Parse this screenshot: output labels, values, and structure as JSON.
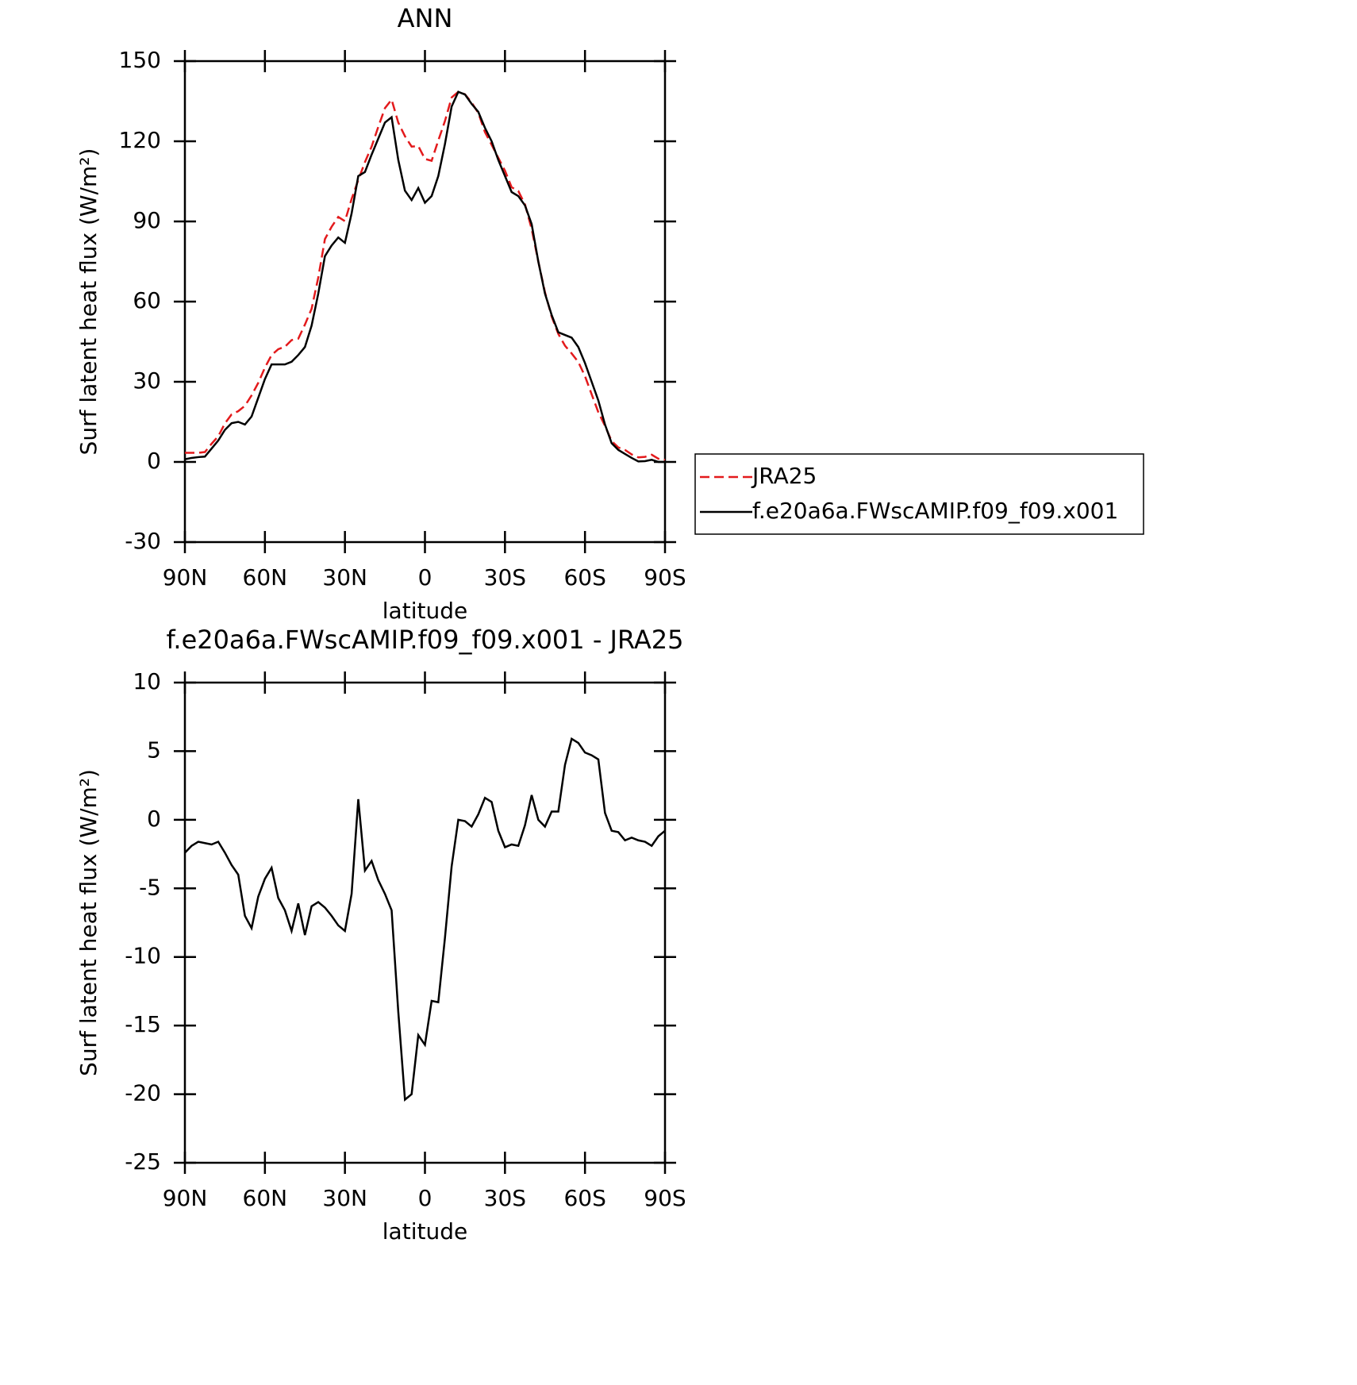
{
  "chart_data": [
    {
      "type": "line",
      "title": "ANN",
      "xlabel": "latitude",
      "ylabel": "Surf latent heat flux (W/m²)",
      "x": [
        90,
        87.5,
        85,
        82.5,
        80,
        77.5,
        75,
        72.5,
        70,
        67.5,
        65,
        62.5,
        60,
        57.5,
        55,
        52.5,
        50,
        47.5,
        45,
        42.5,
        40,
        37.5,
        35,
        32.5,
        30,
        27.5,
        25,
        22.5,
        20,
        17.5,
        15,
        12.5,
        10,
        7.5,
        5,
        2.5,
        0,
        -2.5,
        -5,
        -7.5,
        -10,
        -12.5,
        -15,
        -17.5,
        -20,
        -22.5,
        -25,
        -27.5,
        -30,
        -32.5,
        -35,
        -37.5,
        -40,
        -42.5,
        -45,
        -47.5,
        -50,
        -52.5,
        -55,
        -57.5,
        -60,
        -62.5,
        -65,
        -67.5,
        -70,
        -72.5,
        -75,
        -77.5,
        -80,
        -82.5,
        -85,
        -87.5,
        -90
      ],
      "series": [
        {
          "name": "JRA25",
          "color": "#e31a1c",
          "dash": true,
          "values": [
            3.4,
            3.4,
            3.4,
            3.7,
            6.8,
            9.6,
            14.4,
            17.8,
            19,
            21,
            24.9,
            29.6,
            35.3,
            40,
            42.2,
            43.1,
            45.6,
            46.1,
            51.4,
            57.3,
            69,
            83.4,
            88,
            91.7,
            90.1,
            98.4,
            105.5,
            112.2,
            118,
            125.4,
            132.4,
            135.6,
            127,
            121.9,
            118,
            118.2,
            113.4,
            112.7,
            120.3,
            127.6,
            136.4,
            138.5,
            137.6,
            134.5,
            130.6,
            123.4,
            118.7,
            113.8,
            109,
            102.8,
            101.4,
            96.4,
            87.2,
            75,
            63.5,
            54.4,
            47.9,
            43.5,
            40.6,
            37.4,
            32.1,
            25.3,
            18.6,
            13.5,
            7.8,
            5.4,
            4.5,
            2.8,
            1.7,
            1.9,
            2.7,
            1.2,
            0.8
          ]
        },
        {
          "name": "f.e20a6a.FWscAMIP.f09_f09.x001",
          "color": "#000000",
          "dash": false,
          "values": [
            1,
            1.5,
            1.8,
            2,
            5,
            8,
            12,
            14.5,
            15,
            14,
            17,
            24,
            31,
            36.5,
            36.5,
            36.5,
            37.5,
            40,
            43,
            51,
            63,
            77,
            81,
            84,
            82,
            93,
            107,
            108.5,
            115,
            121,
            127,
            129,
            113,
            101.5,
            98,
            102.5,
            97,
            99.5,
            107,
            119,
            133,
            138.5,
            137.5,
            134,
            131,
            125,
            120,
            113,
            107,
            101,
            99.5,
            96,
            89,
            75,
            63,
            55,
            48.5,
            47.5,
            46.5,
            43,
            37,
            30,
            23,
            14,
            7,
            4.5,
            3,
            1.5,
            0.2,
            0.3,
            0.8,
            0,
            0
          ]
        }
      ],
      "xlim": [
        90,
        -90
      ],
      "xticks": [
        {
          "value": 90,
          "label": "90N"
        },
        {
          "value": 60,
          "label": "60N"
        },
        {
          "value": 30,
          "label": "30N"
        },
        0,
        {
          "value": -30,
          "label": "30S"
        },
        {
          "value": -60,
          "label": "60S"
        },
        {
          "value": -90,
          "label": "90S"
        }
      ],
      "ylim": [
        -30,
        150
      ],
      "yticks": [
        -30,
        0,
        30,
        60,
        90,
        120,
        150
      ],
      "legend": "right"
    },
    {
      "type": "line",
      "title": "f.e20a6a.FWscAMIP.f09_f09.x001 - JRA25",
      "xlabel": "latitude",
      "ylabel": "Surf latent heat flux (W/m²)",
      "x": [
        90,
        87.5,
        85,
        82.5,
        80,
        77.5,
        75,
        72.5,
        70,
        67.5,
        65,
        62.5,
        60,
        57.5,
        55,
        52.5,
        50,
        47.5,
        45,
        42.5,
        40,
        37.5,
        35,
        32.5,
        30,
        27.5,
        25,
        22.5,
        20,
        17.5,
        15,
        12.5,
        10,
        7.5,
        5,
        2.5,
        0,
        -2.5,
        -5,
        -7.5,
        -10,
        -12.5,
        -15,
        -17.5,
        -20,
        -22.5,
        -25,
        -27.5,
        -30,
        -32.5,
        -35,
        -37.5,
        -40,
        -42.5,
        -45,
        -47.5,
        -50,
        -52.5,
        -55,
        -57.5,
        -60,
        -62.5,
        -65,
        -67.5,
        -70,
        -72.5,
        -75,
        -77.5,
        -80,
        -82.5,
        -85,
        -87.5,
        -90
      ],
      "series": [
        {
          "name": null,
          "color": "#000000",
          "dash": false,
          "values": [
            -2.4,
            -1.9,
            -1.6,
            -1.7,
            -1.8,
            -1.6,
            -2.4,
            -3.3,
            -4.0,
            -7.0,
            -7.9,
            -5.6,
            -4.3,
            -3.5,
            -5.7,
            -6.6,
            -8.1,
            -6.1,
            -8.4,
            -6.3,
            -6.0,
            -6.4,
            -7.0,
            -7.7,
            -8.1,
            -5.4,
            1.5,
            -3.7,
            -3.0,
            -4.4,
            -5.4,
            -6.6,
            -14.0,
            -20.4,
            -20.0,
            -15.7,
            -16.4,
            -13.2,
            -13.3,
            -8.6,
            -3.4,
            0.0,
            -0.1,
            -0.5,
            0.4,
            1.6,
            1.3,
            -0.8,
            -2.0,
            -1.8,
            -1.9,
            -0.4,
            1.8,
            0.0,
            -0.5,
            0.6,
            0.6,
            4.0,
            5.9,
            5.6,
            4.9,
            4.7,
            4.4,
            0.5,
            -0.8,
            -0.9,
            -1.5,
            -1.3,
            -1.5,
            -1.6,
            -1.9,
            -1.2,
            -0.8
          ]
        }
      ],
      "xlim": [
        90,
        -90
      ],
      "xticks": [
        {
          "value": 90,
          "label": "90N"
        },
        {
          "value": 60,
          "label": "60N"
        },
        {
          "value": 30,
          "label": "30N"
        },
        0,
        {
          "value": -30,
          "label": "30S"
        },
        {
          "value": -60,
          "label": "60S"
        },
        {
          "value": -90,
          "label": "90S"
        }
      ],
      "ylim": [
        -25,
        10
      ],
      "yticks": [
        -25,
        -20,
        -15,
        -10,
        -5,
        0,
        5,
        10
      ]
    }
  ]
}
